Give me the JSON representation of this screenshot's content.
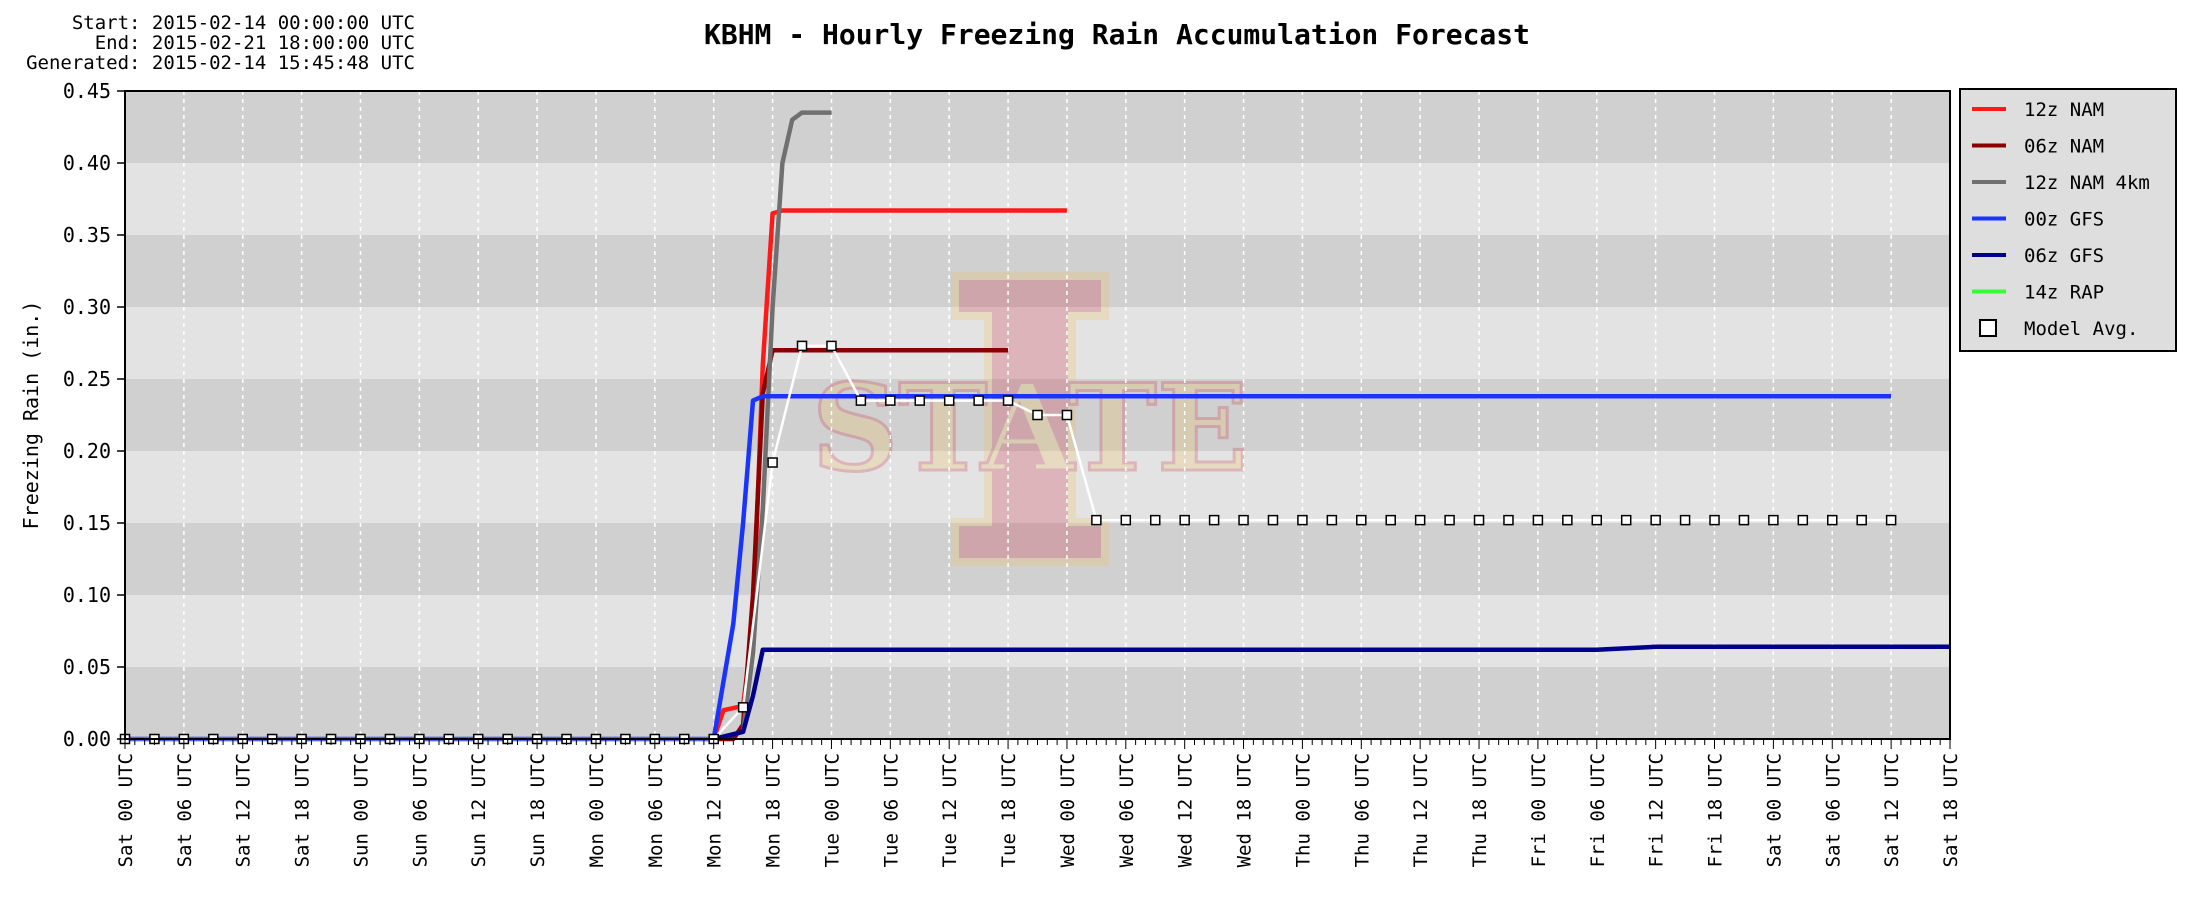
{
  "header": {
    "start_line": "Start: 2015-02-14 00:00:00 UTC",
    "end_line": "End: 2015-02-21 18:00:00 UTC",
    "generated_line": "Generated: 2015-02-14 15:45:48 UTC"
  },
  "chart_data": {
    "type": "line",
    "title": "KBHM - Hourly Freezing Rain Accumulation Forecast",
    "xlabel": "",
    "ylabel": "Freezing Rain (in.)",
    "ylim": [
      0,
      0.45
    ],
    "yticks": [
      "0.00",
      "0.05",
      "0.10",
      "0.15",
      "0.20",
      "0.25",
      "0.30",
      "0.35",
      "0.40",
      "0.45"
    ],
    "xlim_hours": [
      0,
      186
    ],
    "xtick_labels": [
      "Sat 00 UTC",
      "Sat 06 UTC",
      "Sat 12 UTC",
      "Sat 18 UTC",
      "Sun 00 UTC",
      "Sun 06 UTC",
      "Sun 12 UTC",
      "Sun 18 UTC",
      "Mon 00 UTC",
      "Mon 06 UTC",
      "Mon 12 UTC",
      "Mon 18 UTC",
      "Tue 00 UTC",
      "Tue 06 UTC",
      "Tue 12 UTC",
      "Tue 18 UTC",
      "Wed 00 UTC",
      "Wed 06 UTC",
      "Wed 12 UTC",
      "Wed 18 UTC",
      "Thu 00 UTC",
      "Thu 06 UTC",
      "Thu 12 UTC",
      "Thu 18 UTC",
      "Fri 00 UTC",
      "Fri 06 UTC",
      "Fri 12 UTC",
      "Fri 18 UTC",
      "Sat 00 UTC",
      "Sat 06 UTC",
      "Sat 12 UTC",
      "Sat 18 UTC"
    ],
    "grid": true,
    "legend_position": "right",
    "series": [
      {
        "name": "12z NAM",
        "color": "#ff1a1a",
        "x": [
          60,
          61,
          63,
          64,
          65,
          66,
          67,
          76,
          84,
          96
        ],
        "y": [
          0.0,
          0.02,
          0.023,
          0.08,
          0.26,
          0.365,
          0.367,
          0.367,
          0.367,
          0.367
        ]
      },
      {
        "name": "06z NAM",
        "color": "#8b0000",
        "x": [
          60,
          62,
          63,
          64,
          65,
          66,
          68,
          78,
          90
        ],
        "y": [
          0.0,
          0.0,
          0.01,
          0.1,
          0.24,
          0.27,
          0.27,
          0.27,
          0.27
        ]
      },
      {
        "name": "12z NAM 4km",
        "color": "#707070",
        "x": [
          60,
          63,
          64,
          65,
          66,
          67,
          68,
          69,
          70,
          72
        ],
        "y": [
          0.0,
          0.005,
          0.06,
          0.16,
          0.3,
          0.4,
          0.43,
          0.435,
          0.435,
          0.435
        ]
      },
      {
        "name": "00z GFS",
        "color": "#1a33ff",
        "x": [
          0,
          6,
          60,
          61,
          62,
          63,
          64,
          65,
          66,
          72,
          120,
          180
        ],
        "y": [
          0.0,
          0.0,
          0.0,
          0.04,
          0.08,
          0.15,
          0.235,
          0.238,
          0.238,
          0.238,
          0.238,
          0.238
        ]
      },
      {
        "name": "06z GFS",
        "color": "#00008b",
        "x": [
          60,
          63,
          64,
          65,
          66,
          72,
          120,
          150,
          156,
          186
        ],
        "y": [
          0.0,
          0.005,
          0.03,
          0.062,
          0.062,
          0.062,
          0.062,
          0.062,
          0.064,
          0.064
        ]
      },
      {
        "name": "14z RAP",
        "color": "#33ff33",
        "x": [],
        "y": []
      },
      {
        "name": "Model Avg.",
        "color": "#ffffff",
        "marker": "square",
        "x": [
          0,
          3,
          6,
          9,
          12,
          15,
          18,
          21,
          24,
          27,
          30,
          33,
          36,
          39,
          42,
          45,
          48,
          51,
          54,
          57,
          60,
          63,
          66,
          69,
          72,
          75,
          78,
          81,
          84,
          87,
          90,
          93,
          96,
          99,
          102,
          105,
          108,
          111,
          114,
          117,
          120,
          123,
          126,
          129,
          132,
          135,
          138,
          141,
          144,
          147,
          150,
          153,
          156,
          159,
          162,
          165,
          168,
          171,
          174,
          177,
          180
        ],
        "y": [
          0.0,
          0.0,
          0.0,
          0.0,
          0.0,
          0.0,
          0.0,
          0.0,
          0.0,
          0.0,
          0.0,
          0.0,
          0.0,
          0.0,
          0.0,
          0.0,
          0.0,
          0.0,
          0.0,
          0.0,
          0.0,
          0.022,
          0.192,
          0.273,
          0.273,
          0.235,
          0.235,
          0.235,
          0.235,
          0.235,
          0.235,
          0.225,
          0.225,
          0.152,
          0.152,
          0.152,
          0.152,
          0.152,
          0.152,
          0.152,
          0.152,
          0.152,
          0.152,
          0.152,
          0.152,
          0.152,
          0.152,
          0.152,
          0.152,
          0.152,
          0.152,
          0.152,
          0.152,
          0.152,
          0.152,
          0.152,
          0.152,
          0.152,
          0.152,
          0.152,
          0.152
        ]
      }
    ]
  }
}
